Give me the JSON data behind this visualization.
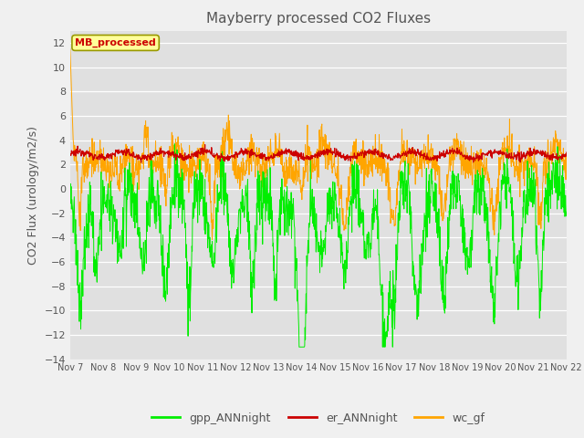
{
  "title": "Mayberry processed CO2 Fluxes",
  "ylabel": "CO2 Flux (urology/m2/s)",
  "ylim": [
    -14,
    13
  ],
  "yticks": [
    -14,
    -12,
    -10,
    -8,
    -6,
    -4,
    -2,
    0,
    2,
    4,
    6,
    8,
    10,
    12
  ],
  "xtick_labels": [
    "Nov 7",
    "Nov 8",
    "Nov 9",
    "Nov 10",
    "Nov 11",
    "Nov 12",
    "Nov 13",
    "Nov 14",
    "Nov 15",
    "Nov 16",
    "Nov 17",
    "Nov 18",
    "Nov 19",
    "Nov 20",
    "Nov 21",
    "Nov 22"
  ],
  "legend_labels": [
    "gpp_ANNnight",
    "er_ANNnight",
    "wc_gf"
  ],
  "legend_colors": [
    "#00ee00",
    "#cc0000",
    "#ffa500"
  ],
  "annotation_text": "MB_processed",
  "annotation_color": "#cc0000",
  "annotation_bg": "#ffff99",
  "fig_facecolor": "#f0f0f0",
  "ax_facecolor": "#e0e0e0",
  "grid_color": "#ffffff",
  "title_color": "#555555",
  "tick_color": "#555555",
  "seed": 12345
}
